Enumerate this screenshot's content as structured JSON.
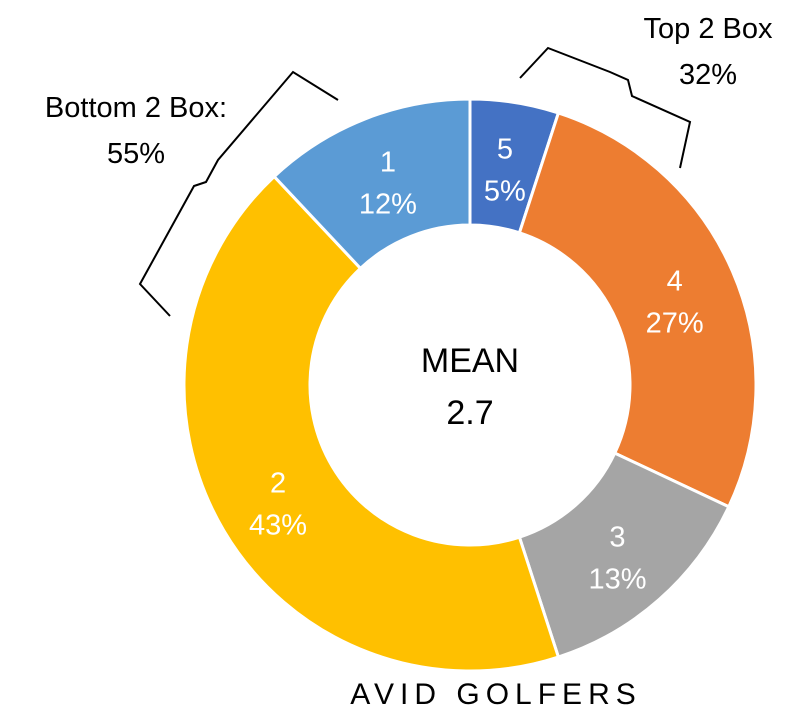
{
  "chart_data": {
    "type": "pie",
    "variant": "donut",
    "title": "AVID GOLFERS",
    "center_label": "MEAN",
    "center_value": "2.7",
    "slices": [
      {
        "label": "5",
        "value": 5,
        "value_label": "5%",
        "color": "#4472C4"
      },
      {
        "label": "4",
        "value": 27,
        "value_label": "27%",
        "color": "#ED7D31"
      },
      {
        "label": "3",
        "value": 13,
        "value_label": "13%",
        "color": "#A5A5A5"
      },
      {
        "label": "2",
        "value": 43,
        "value_label": "43%",
        "color": "#FFC000"
      },
      {
        "label": "1",
        "value": 12,
        "value_label": "12%",
        "color": "#5B9BD5"
      }
    ],
    "annotations": {
      "top2": {
        "line1": "Top 2 Box",
        "line2": "32%"
      },
      "bottom2": {
        "line1": "Bottom 2 Box:",
        "line2": "55%"
      }
    }
  }
}
